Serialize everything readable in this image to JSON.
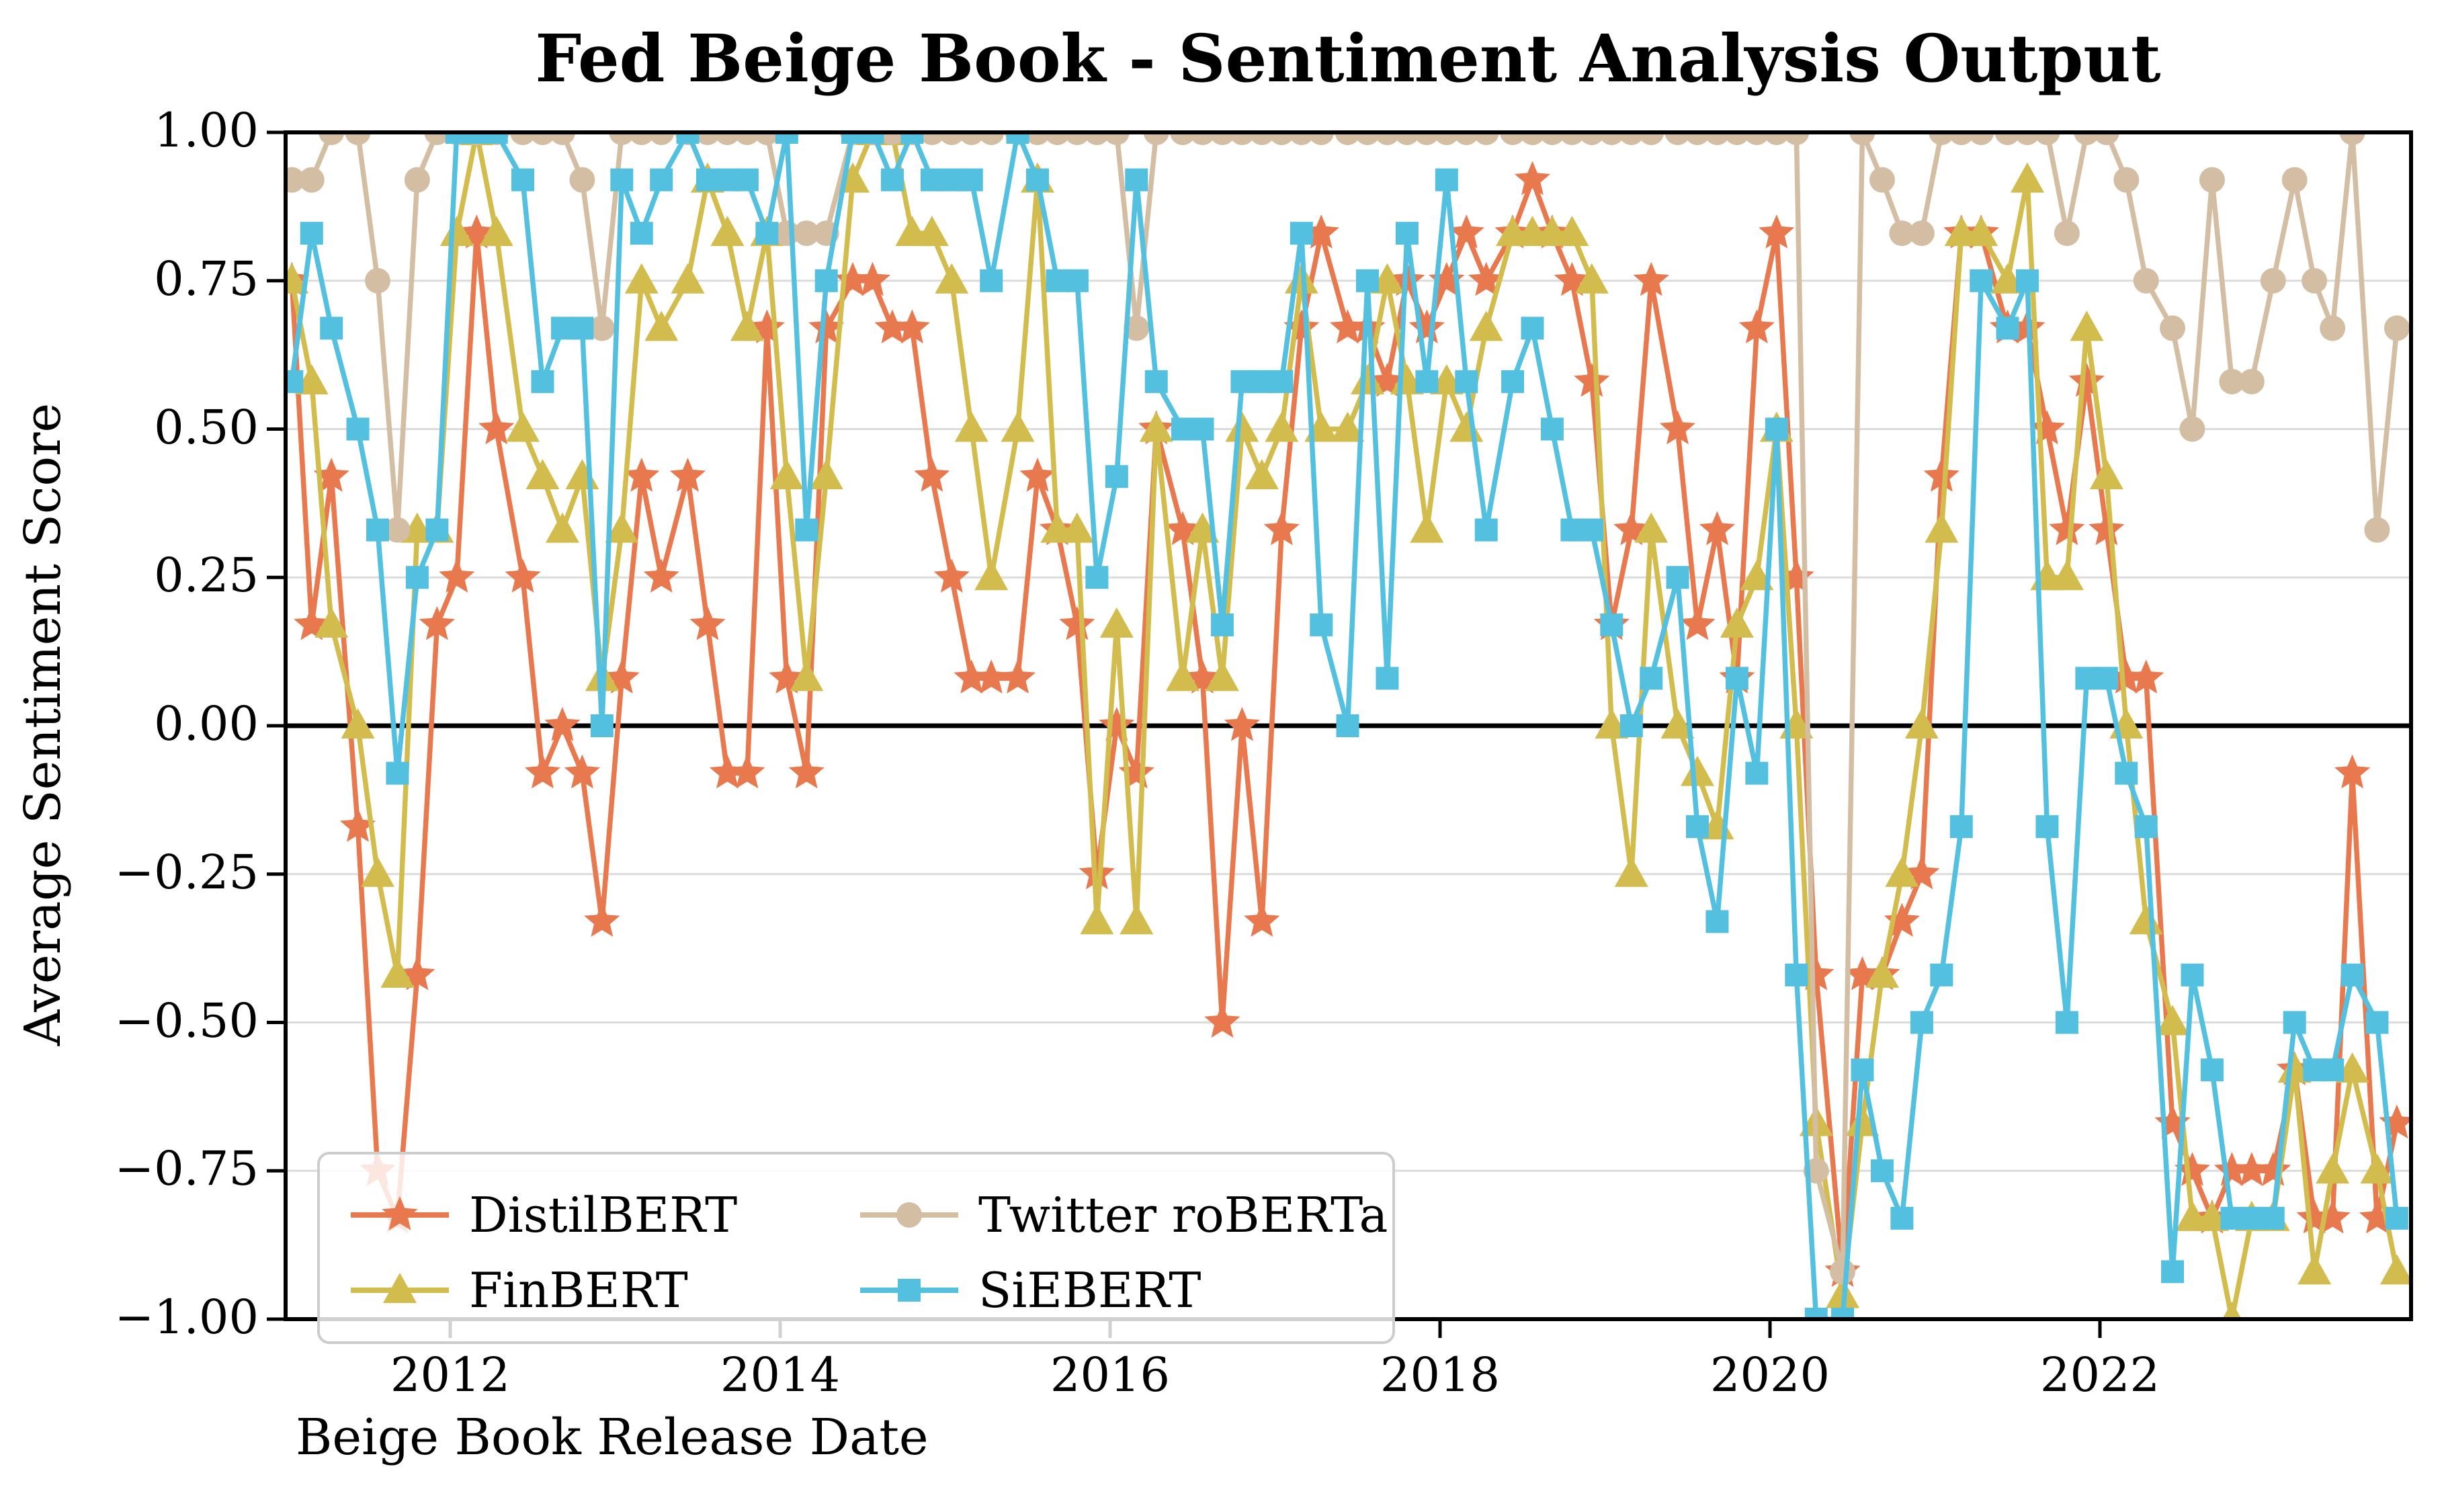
{
  "figure": {
    "title": "Fed Beige Book - Sentiment Analysis Output",
    "xlabel": "Beige Book Release Date",
    "ylabel": "Average Sentiment Score"
  },
  "colors": {
    "background": "#FFFFFF",
    "grid": "#DCDCDC",
    "zero_line": "#000000",
    "spine": "#000000",
    "legend_border": "#CCCCCC"
  },
  "axes": {
    "xtick_labels": [
      "2012",
      "2014",
      "2016",
      "2018",
      "2020",
      "2022"
    ],
    "xtick_years": [
      2012,
      2014,
      2016,
      2018,
      2020,
      2022
    ],
    "ytick_labels": [
      "1.00",
      "0.75",
      "0.50",
      "0.25",
      "0.00",
      "−0.25",
      "−0.50",
      "−0.75",
      "−1.00"
    ],
    "ytick_values": [
      1,
      0.75,
      0.5,
      0.25,
      0,
      -0.25,
      -0.5,
      -0.75,
      -1
    ]
  },
  "chart_data": {
    "type": "line",
    "title": "Fed Beige Book - Sentiment Analysis Output",
    "xlabel": "Beige Book Release Date",
    "ylabel": "Average Sentiment Score",
    "xlim": [
      2010.86,
      2023.97
    ],
    "ylim": [
      -1,
      1
    ],
    "grid": true,
    "legend_position": "lower left",
    "x": [
      2011.04,
      2011.16,
      2011.28,
      2011.44,
      2011.56,
      2011.68,
      2011.8,
      2011.92,
      2012.04,
      2012.16,
      2012.28,
      2012.44,
      2012.56,
      2012.68,
      2012.8,
      2012.92,
      2013.04,
      2013.16,
      2013.28,
      2013.44,
      2013.56,
      2013.68,
      2013.8,
      2013.92,
      2014.04,
      2014.16,
      2014.28,
      2014.44,
      2014.56,
      2014.68,
      2014.8,
      2014.92,
      2015.04,
      2015.16,
      2015.28,
      2015.44,
      2015.56,
      2015.68,
      2015.8,
      2015.92,
      2016.04,
      2016.16,
      2016.28,
      2016.44,
      2016.56,
      2016.68,
      2016.8,
      2016.92,
      2017.04,
      2017.16,
      2017.28,
      2017.44,
      2017.56,
      2017.68,
      2017.8,
      2017.92,
      2018.04,
      2018.16,
      2018.28,
      2018.44,
      2018.56,
      2018.68,
      2018.8,
      2018.92,
      2019.04,
      2019.16,
      2019.28,
      2019.44,
      2019.56,
      2019.68,
      2019.8,
      2019.92,
      2020.04,
      2020.16,
      2020.28,
      2020.44,
      2020.56,
      2020.68,
      2020.8,
      2020.92,
      2021.04,
      2021.16,
      2021.28,
      2021.44,
      2021.56,
      2021.68,
      2021.8,
      2021.92,
      2022.04,
      2022.16,
      2022.28,
      2022.44,
      2022.56,
      2022.68,
      2022.8,
      2022.92,
      2023.05,
      2023.18,
      2023.3,
      2023.41,
      2023.53,
      2023.68,
      2023.8
    ],
    "series": [
      {
        "name": "DistilBERT",
        "color": "#E8784D",
        "marker": "star",
        "values": [
          0.75,
          0.17,
          0.42,
          -0.17,
          -0.75,
          -0.83,
          -0.42,
          0.17,
          0.25,
          0.83,
          0.5,
          0.25,
          -0.08,
          0,
          -0.08,
          -0.33,
          0.08,
          0.42,
          0.25,
          0.42,
          0.17,
          -0.08,
          -0.08,
          0.67,
          0.08,
          -0.08,
          0.67,
          0.75,
          0.75,
          0.67,
          0.67,
          0.42,
          0.25,
          0.08,
          0.08,
          0.08,
          0.42,
          0.33,
          0.17,
          -0.25,
          0,
          -0.08,
          0.5,
          0.33,
          0.08,
          -0.5,
          0,
          -0.33,
          0.33,
          0.67,
          0.83,
          0.67,
          0.67,
          0.58,
          0.75,
          0.67,
          0.75,
          0.83,
          0.75,
          0.83,
          0.92,
          0.83,
          0.75,
          0.58,
          0.17,
          0.33,
          0.75,
          0.5,
          0.17,
          0.33,
          0.08,
          0.67,
          0.83,
          0.25,
          -0.42,
          -0.92,
          -0.42,
          -0.42,
          -0.33,
          -0.25,
          0.42,
          0.83,
          0.83,
          0.67,
          0.67,
          0.5,
          0.33,
          0.58,
          0.33,
          0.08,
          0.08,
          -0.67,
          -0.75,
          -0.83,
          -0.75,
          -0.75,
          -0.75,
          -0.58,
          -0.83,
          -0.83,
          -0.08,
          -0.83,
          -0.67
        ]
      },
      {
        "name": "FinBERT",
        "color": "#D2BC4E",
        "marker": "triangle",
        "values": [
          0.75,
          0.58,
          0.17,
          0,
          -0.25,
          -0.42,
          0.33,
          0.33,
          0.83,
          1,
          0.83,
          0.5,
          0.42,
          0.33,
          0.42,
          0.08,
          0.33,
          0.75,
          0.67,
          0.75,
          0.92,
          0.83,
          0.67,
          0.83,
          0.42,
          0.08,
          0.42,
          0.92,
          1,
          1,
          0.83,
          0.83,
          0.75,
          0.5,
          0.25,
          0.5,
          0.92,
          0.33,
          0.33,
          -0.33,
          0.17,
          -0.33,
          0.5,
          0.08,
          0.33,
          0.08,
          0.5,
          0.42,
          0.5,
          0.75,
          0.5,
          0.5,
          0.58,
          0.75,
          0.58,
          0.33,
          0.58,
          0.5,
          0.67,
          0.83,
          0.83,
          0.83,
          0.83,
          0.75,
          0,
          -0.25,
          0.33,
          0,
          -0.08,
          -0.17,
          0.17,
          0.25,
          0.5,
          0,
          -0.67,
          -0.96,
          -0.67,
          -0.42,
          -0.25,
          0,
          0.33,
          0.83,
          0.83,
          0.75,
          0.92,
          0.25,
          0.25,
          0.67,
          0.42,
          0,
          -0.33,
          -0.5,
          -0.83,
          -0.83,
          -1,
          -0.83,
          -0.83,
          -0.58,
          -0.92,
          -0.75,
          -0.58,
          -0.75,
          -0.92
        ]
      },
      {
        "name": "Twitter roBERTa",
        "color": "#D3BEA3",
        "marker": "circle",
        "values": [
          0.92,
          0.92,
          1,
          1,
          0.75,
          0.33,
          0.92,
          1,
          1,
          1,
          1,
          1,
          1,
          1,
          0.92,
          0.67,
          1,
          1,
          1,
          1,
          1,
          1,
          1,
          1,
          0.83,
          0.83,
          0.83,
          1,
          1,
          1,
          1,
          1,
          1,
          1,
          1,
          1,
          1,
          1,
          1,
          1,
          1,
          0.67,
          1,
          1,
          1,
          1,
          1,
          1,
          1,
          1,
          1,
          1,
          1,
          1,
          1,
          1,
          1,
          1,
          1,
          1,
          1,
          1,
          1,
          1,
          1,
          1,
          1,
          1,
          1,
          1,
          1,
          1,
          1,
          1,
          -0.75,
          -0.92,
          1,
          0.92,
          0.83,
          0.83,
          1,
          1,
          1,
          1,
          1,
          1,
          0.83,
          1,
          1,
          0.92,
          0.75,
          0.67,
          0.5,
          0.92,
          0.58,
          0.58,
          0.75,
          0.92,
          0.75,
          0.67,
          1,
          0.33,
          0.67
        ]
      },
      {
        "name": "SiEBERT",
        "color": "#54C0E0",
        "marker": "square",
        "values": [
          0.58,
          0.83,
          0.67,
          0.5,
          0.33,
          -0.08,
          0.25,
          0.33,
          1,
          1,
          1,
          0.92,
          0.58,
          0.67,
          0.67,
          0,
          0.92,
          0.83,
          0.92,
          1,
          0.92,
          0.92,
          0.92,
          0.83,
          1,
          0.33,
          0.75,
          1,
          1,
          0.92,
          1,
          0.92,
          0.92,
          0.92,
          0.75,
          1,
          0.92,
          0.75,
          0.75,
          0.25,
          0.42,
          0.92,
          0.58,
          0.5,
          0.5,
          0.17,
          0.58,
          0.58,
          0.58,
          0.83,
          0.17,
          0,
          0.75,
          0.08,
          0.83,
          0.58,
          0.92,
          0.58,
          0.33,
          0.58,
          0.67,
          0.5,
          0.33,
          0.33,
          0.17,
          0,
          0.08,
          0.25,
          -0.17,
          -0.33,
          0.08,
          -0.08,
          0.5,
          -0.42,
          -1,
          -1,
          -0.58,
          -0.75,
          -0.83,
          -0.5,
          -0.42,
          -0.17,
          0.75,
          0.67,
          0.75,
          -0.17,
          -0.5,
          0.08,
          0.08,
          -0.08,
          -0.17,
          -0.92,
          -0.42,
          -0.58,
          -0.83,
          -0.83,
          -0.83,
          -0.5,
          -0.58,
          -0.58,
          -0.42,
          -0.5,
          -0.83
        ]
      }
    ]
  }
}
